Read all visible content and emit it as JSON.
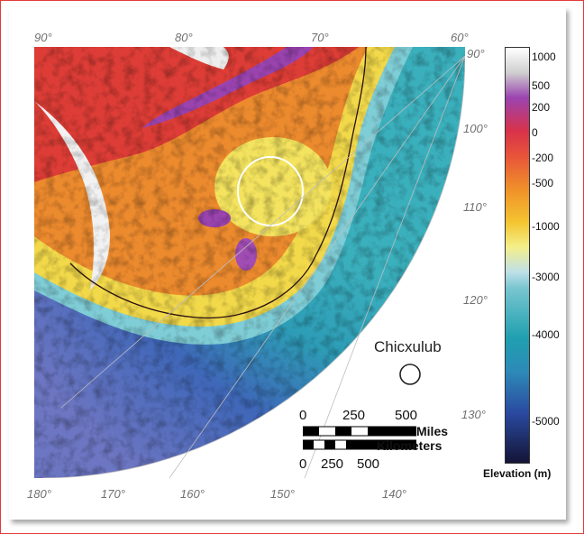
{
  "map": {
    "top_longitudes": [
      "90°",
      "80°",
      "70°",
      "60°"
    ],
    "right_latitudes": [
      "90°",
      "100°",
      "110°",
      "120°",
      "130°"
    ],
    "bottom_longitudes": [
      "180°",
      "170°",
      "160°",
      "150°",
      "140°"
    ],
    "crater_label": "Chicxulub"
  },
  "scale": {
    "miles_ticks": [
      "0",
      "250",
      "500"
    ],
    "miles_label": "Miles",
    "km_label": "Kilometers",
    "km_ticks": [
      "0",
      "250",
      "500"
    ]
  },
  "legend": {
    "title": "Elevation (m)",
    "ticks": [
      "1000",
      "500",
      "200",
      "0",
      "-200",
      "-500",
      "-1000",
      "-3000",
      "-4000",
      "-5000"
    ],
    "colors": [
      "#ffffff",
      "#9b44b0",
      "#d8324a",
      "#e8533a",
      "#f0902a",
      "#f4c430",
      "#f4f08a",
      "#78c6cf",
      "#1f9fb0",
      "#2a4aa0",
      "#141436"
    ]
  }
}
